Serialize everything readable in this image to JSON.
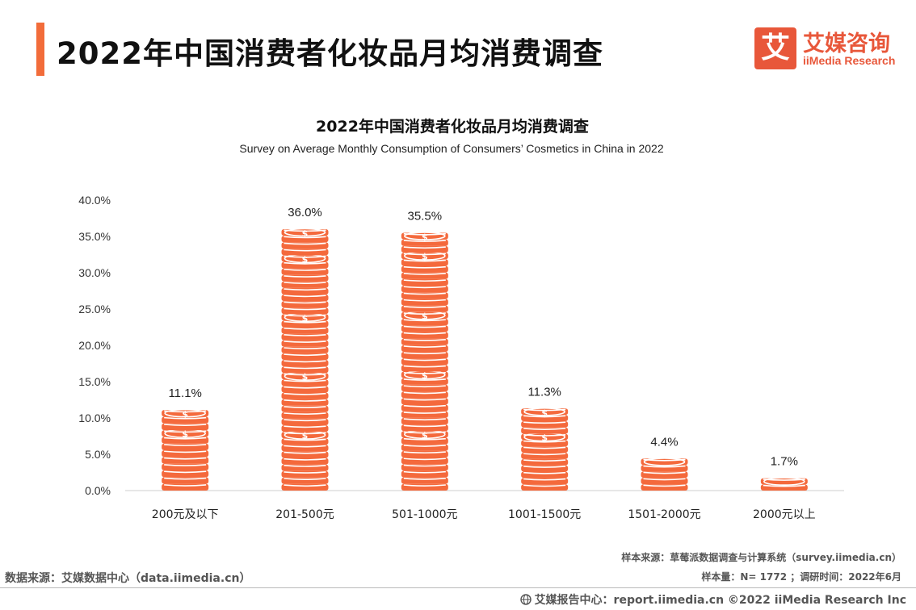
{
  "header": {
    "title": "2022年中国消费者化妆品月均消费调查",
    "accent_color": "#f26c3a"
  },
  "logo": {
    "mark": "艾",
    "name_cn": "艾媒咨询",
    "name_en": "iiMedia Research",
    "color": "#e8573a"
  },
  "chart_data": {
    "type": "bar",
    "title": "2022年中国消费者化妆品月均消费调查",
    "subtitle": "Survey on Average Monthly Consumption of Consumers’  Cosmetics in China in 2022",
    "categories": [
      "200元及以下",
      "201-500元",
      "501-1000元",
      "1001-1500元",
      "1501-2000元",
      "2000元以上"
    ],
    "values": [
      11.1,
      36.0,
      35.5,
      11.3,
      4.4,
      1.7
    ],
    "value_labels": [
      "11.1%",
      "36.0%",
      "35.5%",
      "11.3%",
      "4.4%",
      "1.7%"
    ],
    "ylim": [
      0,
      40
    ],
    "yticks": [
      "0.0%",
      "5.0%",
      "10.0%",
      "15.0%",
      "20.0%",
      "25.0%",
      "30.0%",
      "35.0%",
      "40.0%"
    ],
    "grid": false,
    "bar_style": "stacked-coins-icon",
    "bar_color": "#f4693c"
  },
  "footer": {
    "data_source": "数据来源：艾媒数据中心（data.iimedia.cn）",
    "sample_source": "样本来源：草莓派数据调查与计算系统（survey.iimedia.cn）",
    "sample_info": "样本量：N= 1772 ；调研时间：2022年6月",
    "report_center": "艾媒报告中心：report.iimedia.cn   ©2022  iiMedia Research  Inc"
  }
}
